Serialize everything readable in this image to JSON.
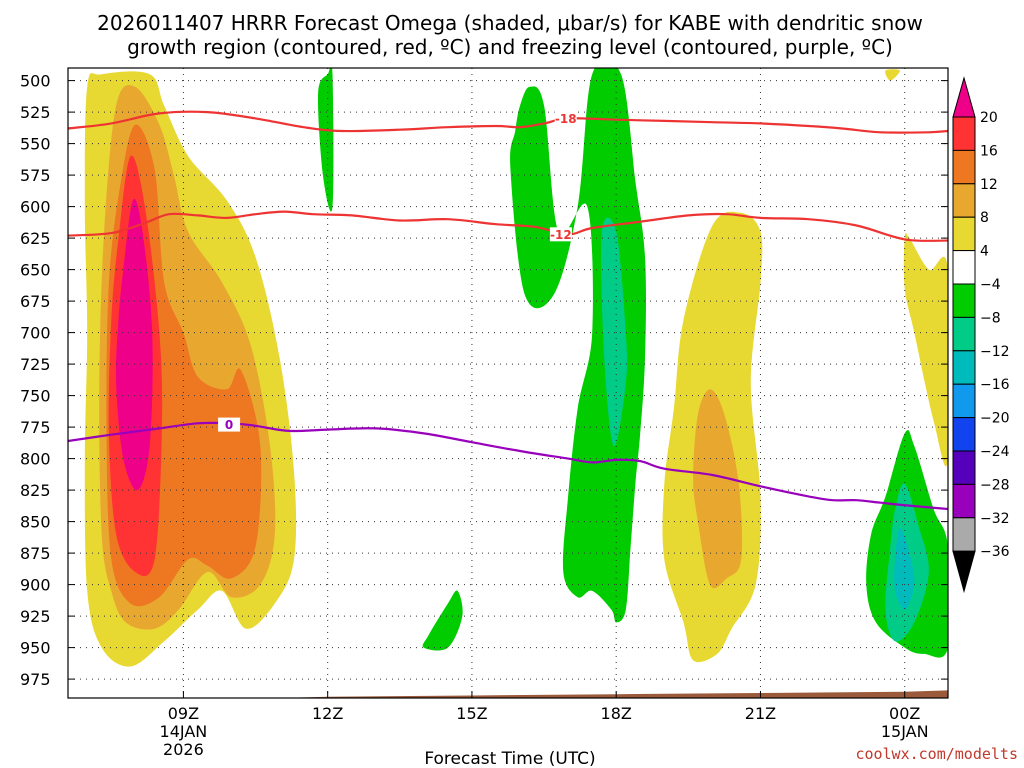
{
  "chart_data": {
    "type": "heatmap",
    "title_line1": "2026011407 HRRR Forecast Omega (shaded, μbar/s) for KABE with dendritic snow",
    "title_line2": "growth region (contoured, red, ºC) and freezing level (contoured, purple, ºC)",
    "xlabel": "Forecast Time (UTC)",
    "credit": "coolwx.com/modelts",
    "x_range_hours": [
      6.6,
      24.9
    ],
    "y_range_mb": [
      490,
      990
    ],
    "pressure_levels": [
      500,
      525,
      550,
      575,
      600,
      625,
      650,
      675,
      700,
      725,
      750,
      775,
      800,
      825,
      850,
      875,
      900,
      925,
      950,
      975
    ],
    "x_ticks": [
      {
        "hour": 9,
        "label": "09Z",
        "date1": "14JAN",
        "date2": "2026"
      },
      {
        "hour": 12,
        "label": "12Z",
        "date1": "",
        "date2": ""
      },
      {
        "hour": 15,
        "label": "15Z",
        "date1": "",
        "date2": ""
      },
      {
        "hour": 18,
        "label": "18Z",
        "date1": "",
        "date2": ""
      },
      {
        "hour": 21,
        "label": "21Z",
        "date1": "",
        "date2": ""
      },
      {
        "hour": 24,
        "label": "00Z",
        "date1": "15JAN",
        "date2": ""
      }
    ],
    "colorbar": {
      "labels": [
        "20",
        "16",
        "12",
        "8",
        "4",
        "−4",
        "−8",
        "−12",
        "−16",
        "−20",
        "−24",
        "−28",
        "−32",
        "−36"
      ],
      "colors": [
        "#ee0088",
        "#ff3333",
        "#ee7722",
        "#e8a830",
        "#e8d832",
        "#ffffff",
        "#00cc00",
        "#00cc88",
        "#00bbbb",
        "#1199ee",
        "#1144ee",
        "#5500bb",
        "#9900bb",
        "#aaaaaa",
        "#000000"
      ]
    },
    "omega_regions": [
      {
        "value": 4,
        "color": "#e8d832",
        "points": [
          [
            7.0,
            505
          ],
          [
            7.3,
            495
          ],
          [
            8.3,
            495
          ],
          [
            8.6,
            520
          ],
          [
            9.1,
            560
          ],
          [
            9.9,
            595
          ],
          [
            10.5,
            640
          ],
          [
            11.0,
            720
          ],
          [
            11.3,
            810
          ],
          [
            11.3,
            880
          ],
          [
            10.9,
            915
          ],
          [
            10.3,
            935
          ],
          [
            9.8,
            905
          ],
          [
            9.3,
            920
          ],
          [
            8.6,
            945
          ],
          [
            7.9,
            965
          ],
          [
            7.3,
            950
          ],
          [
            7.0,
            905
          ],
          [
            6.95,
            800
          ],
          [
            7.0,
            700
          ],
          [
            6.95,
            600
          ]
        ]
      },
      {
        "value": 8,
        "color": "#e8a830",
        "points": [
          [
            7.6,
            520
          ],
          [
            8.0,
            505
          ],
          [
            8.5,
            535
          ],
          [
            8.8,
            575
          ],
          [
            9.1,
            620
          ],
          [
            9.8,
            660
          ],
          [
            10.4,
            710
          ],
          [
            10.8,
            790
          ],
          [
            10.9,
            860
          ],
          [
            10.6,
            900
          ],
          [
            10.0,
            910
          ],
          [
            9.5,
            890
          ],
          [
            8.9,
            920
          ],
          [
            8.4,
            935
          ],
          [
            7.8,
            930
          ],
          [
            7.5,
            905
          ],
          [
            7.3,
            860
          ],
          [
            7.25,
            740
          ],
          [
            7.35,
            620
          ]
        ]
      },
      {
        "value": 12,
        "color": "#ee7722",
        "points": [
          [
            7.7,
            580
          ],
          [
            8.0,
            535
          ],
          [
            8.4,
            570
          ],
          [
            8.6,
            660
          ],
          [
            9.0,
            700
          ],
          [
            9.3,
            735
          ],
          [
            9.9,
            745
          ],
          [
            10.2,
            730
          ],
          [
            10.6,
            790
          ],
          [
            10.5,
            870
          ],
          [
            10.0,
            895
          ],
          [
            9.5,
            885
          ],
          [
            9.1,
            880
          ],
          [
            8.5,
            910
          ],
          [
            7.9,
            915
          ],
          [
            7.5,
            880
          ],
          [
            7.4,
            780
          ],
          [
            7.45,
            660
          ]
        ]
      },
      {
        "value": 16,
        "color": "#ff3333",
        "points": [
          [
            7.65,
            625
          ],
          [
            7.9,
            560
          ],
          [
            8.2,
            600
          ],
          [
            8.5,
            700
          ],
          [
            8.55,
            780
          ],
          [
            8.4,
            880
          ],
          [
            8.0,
            890
          ],
          [
            7.6,
            860
          ],
          [
            7.45,
            780
          ],
          [
            7.5,
            690
          ]
        ]
      },
      {
        "value": 20,
        "color": "#ee0088",
        "points": [
          [
            7.75,
            650
          ],
          [
            7.95,
            595
          ],
          [
            8.15,
            620
          ],
          [
            8.35,
            700
          ],
          [
            8.3,
            790
          ],
          [
            8.05,
            825
          ],
          [
            7.75,
            800
          ],
          [
            7.6,
            740
          ],
          [
            7.65,
            690
          ]
        ]
      },
      {
        "value": 4,
        "color": "#e8d832",
        "points": [
          [
            20.0,
            615
          ],
          [
            20.6,
            605
          ],
          [
            21.0,
            620
          ],
          [
            21.0,
            660
          ],
          [
            20.8,
            740
          ],
          [
            21.0,
            830
          ],
          [
            20.9,
            900
          ],
          [
            20.4,
            935
          ],
          [
            20.1,
            955
          ],
          [
            19.6,
            960
          ],
          [
            19.4,
            930
          ],
          [
            19.0,
            880
          ],
          [
            19.0,
            820
          ],
          [
            19.2,
            760
          ],
          [
            19.4,
            690
          ]
        ]
      },
      {
        "value": 8,
        "color": "#e8a830",
        "points": [
          [
            19.7,
            765
          ],
          [
            19.95,
            745
          ],
          [
            20.25,
            765
          ],
          [
            20.55,
            820
          ],
          [
            20.6,
            880
          ],
          [
            20.3,
            895
          ],
          [
            19.95,
            900
          ],
          [
            19.7,
            850
          ],
          [
            19.6,
            815
          ]
        ]
      },
      {
        "value": 4,
        "color": "#e8d832",
        "points": [
          [
            24.0,
            625
          ],
          [
            24.1,
            625
          ],
          [
            24.5,
            650
          ],
          [
            24.9,
            650
          ],
          [
            24.9,
            800
          ],
          [
            24.6,
            770
          ],
          [
            24.2,
            700
          ],
          [
            24.0,
            665
          ]
        ]
      },
      {
        "value": 4,
        "color": "#e8d832",
        "points": [
          [
            23.6,
            492
          ],
          [
            23.9,
            492
          ],
          [
            23.7,
            500
          ]
        ]
      },
      {
        "value": -4,
        "color": "#00cc00",
        "points": [
          [
            12.0,
            495
          ],
          [
            12.1,
            495
          ],
          [
            12.1,
            600
          ],
          [
            11.9,
            575
          ],
          [
            11.8,
            510
          ]
        ]
      },
      {
        "value": -4,
        "color": "#00cc00",
        "points": [
          [
            16.0,
            520
          ],
          [
            16.2,
            505
          ],
          [
            16.5,
            520
          ],
          [
            16.8,
            620
          ],
          [
            17.4,
            600
          ],
          [
            17.5,
            700
          ],
          [
            17.2,
            760
          ],
          [
            17.0,
            830
          ],
          [
            16.9,
            890
          ],
          [
            17.2,
            910
          ],
          [
            17.5,
            905
          ],
          [
            17.9,
            920
          ],
          [
            18.0,
            930
          ],
          [
            18.2,
            920
          ],
          [
            18.3,
            870
          ],
          [
            18.4,
            820
          ],
          [
            18.5,
            780
          ],
          [
            18.6,
            720
          ],
          [
            18.6,
            640
          ],
          [
            18.4,
            580
          ],
          [
            18.1,
            495
          ],
          [
            17.5,
            495
          ],
          [
            17.2,
            600
          ],
          [
            16.7,
            670
          ],
          [
            16.1,
            670
          ],
          [
            15.8,
            570
          ],
          [
            15.9,
            540
          ]
        ]
      },
      {
        "value": -4,
        "color": "#00cc00",
        "points": [
          [
            14.1,
            940
          ],
          [
            14.5,
            915
          ],
          [
            14.7,
            905
          ],
          [
            14.8,
            925
          ],
          [
            14.5,
            950
          ],
          [
            14.0,
            950
          ]
        ]
      },
      {
        "value": -4,
        "color": "#00cc00",
        "points": [
          [
            24.0,
            780
          ],
          [
            24.2,
            790
          ],
          [
            24.6,
            840
          ],
          [
            24.9,
            870
          ],
          [
            24.9,
            950
          ],
          [
            24.4,
            955
          ],
          [
            24.0,
            950
          ],
          [
            23.4,
            930
          ],
          [
            23.2,
            900
          ],
          [
            23.3,
            860
          ],
          [
            23.6,
            830
          ]
        ]
      },
      {
        "value": -8,
        "color": "#00cc88",
        "points": [
          [
            17.7,
            620
          ],
          [
            18.0,
            620
          ],
          [
            18.2,
            700
          ],
          [
            18.2,
            740
          ],
          [
            17.95,
            790
          ],
          [
            17.75,
            720
          ]
        ]
      },
      {
        "value": -8,
        "color": "#00cc88",
        "points": [
          [
            24.0,
            820
          ],
          [
            24.3,
            855
          ],
          [
            24.5,
            890
          ],
          [
            24.2,
            930
          ],
          [
            23.8,
            945
          ],
          [
            23.6,
            920
          ],
          [
            23.7,
            870
          ],
          [
            23.8,
            840
          ]
        ]
      },
      {
        "value": -12,
        "color": "#00bbbb",
        "points": [
          [
            23.9,
            855
          ],
          [
            24.1,
            875
          ],
          [
            24.2,
            900
          ],
          [
            24.0,
            920
          ],
          [
            23.8,
            905
          ],
          [
            23.8,
            880
          ]
        ]
      }
    ],
    "contours": [
      {
        "label": "-18",
        "color": "#ee3333",
        "label_at": [
          16.95,
          530
        ],
        "points": [
          [
            6.6,
            538
          ],
          [
            7.5,
            534
          ],
          [
            8.5,
            526
          ],
          [
            9.5,
            525
          ],
          [
            10.5,
            530
          ],
          [
            11.5,
            537
          ],
          [
            12.3,
            540
          ],
          [
            13.5,
            539
          ],
          [
            14.5,
            537
          ],
          [
            15.5,
            536
          ],
          [
            16.0,
            537
          ],
          [
            16.5,
            534
          ],
          [
            17.0,
            530
          ],
          [
            18.0,
            531
          ],
          [
            19.0,
            532
          ],
          [
            20.0,
            533
          ],
          [
            21.0,
            534
          ],
          [
            22.0,
            536
          ],
          [
            22.7,
            538
          ],
          [
            23.5,
            541
          ],
          [
            24.5,
            541
          ],
          [
            24.9,
            540
          ]
        ]
      },
      {
        "label": "-12",
        "color": "#ee3333",
        "label_at": [
          16.85,
          622
        ],
        "points": [
          [
            6.6,
            623
          ],
          [
            7.5,
            621
          ],
          [
            8.2,
            613
          ],
          [
            8.7,
            606
          ],
          [
            9.3,
            607
          ],
          [
            9.9,
            609
          ],
          [
            10.5,
            606
          ],
          [
            11.1,
            604
          ],
          [
            11.7,
            606
          ],
          [
            12.5,
            607
          ],
          [
            13.5,
            611
          ],
          [
            14.5,
            610
          ],
          [
            15.5,
            614
          ],
          [
            16.3,
            616
          ],
          [
            17.0,
            622
          ],
          [
            17.5,
            617
          ],
          [
            18.5,
            612
          ],
          [
            19.5,
            607
          ],
          [
            20.3,
            606
          ],
          [
            21.0,
            609
          ],
          [
            22.0,
            610
          ],
          [
            23.0,
            615
          ],
          [
            24.0,
            626
          ],
          [
            24.9,
            627
          ]
        ]
      },
      {
        "label": "0",
        "color": "#9900bb",
        "label_at": [
          9.95,
          773
        ],
        "points": [
          [
            6.6,
            786
          ],
          [
            7.5,
            781
          ],
          [
            8.5,
            776
          ],
          [
            9.3,
            772
          ],
          [
            10.0,
            772
          ],
          [
            10.5,
            774
          ],
          [
            11.2,
            778
          ],
          [
            12.0,
            777
          ],
          [
            13.0,
            776
          ],
          [
            14.0,
            780
          ],
          [
            15.0,
            787
          ],
          [
            16.0,
            794
          ],
          [
            17.0,
            800
          ],
          [
            17.5,
            803
          ],
          [
            18.0,
            801
          ],
          [
            18.5,
            802
          ],
          [
            19.0,
            808
          ],
          [
            20.0,
            813
          ],
          [
            21.0,
            822
          ],
          [
            22.0,
            830
          ],
          [
            22.5,
            833
          ],
          [
            23.0,
            833
          ],
          [
            23.5,
            835
          ],
          [
            24.0,
            837
          ],
          [
            24.9,
            840
          ]
        ]
      }
    ]
  }
}
